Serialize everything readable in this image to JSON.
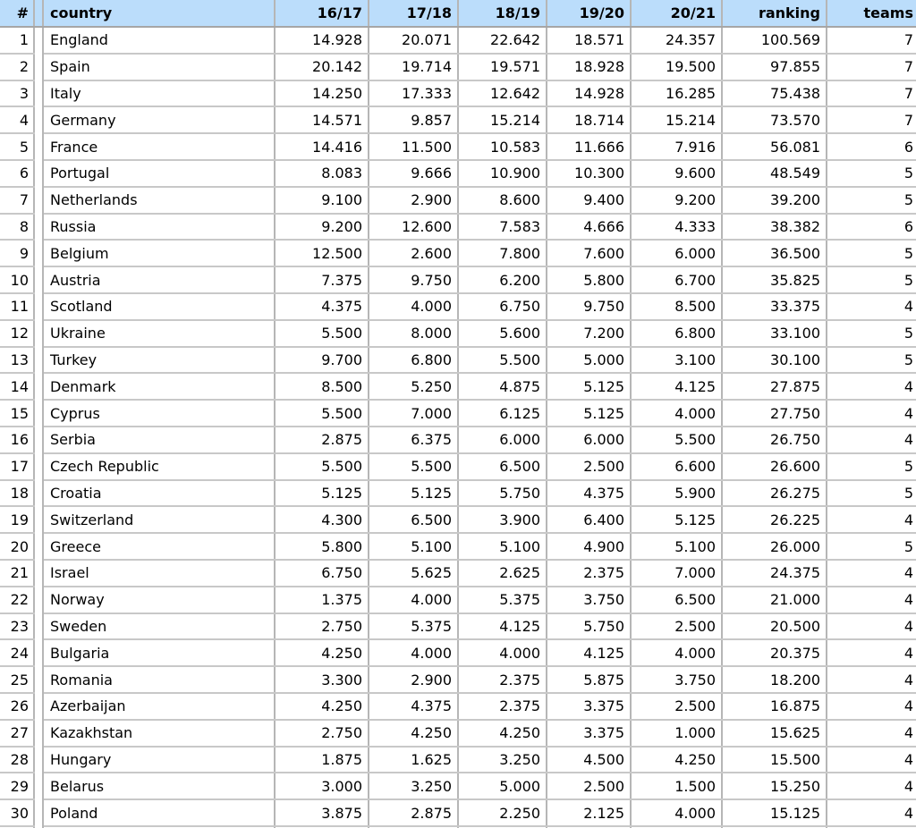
{
  "chart_data": {
    "type": "table",
    "columns": [
      "#",
      "country",
      "16/17",
      "17/18",
      "18/19",
      "19/20",
      "20/21",
      "ranking",
      "teams"
    ],
    "rows": [
      [
        "1",
        "England",
        "14.928",
        "20.071",
        "22.642",
        "18.571",
        "24.357",
        "100.569",
        "7"
      ],
      [
        "2",
        "Spain",
        "20.142",
        "19.714",
        "19.571",
        "18.928",
        "19.500",
        "97.855",
        "7"
      ],
      [
        "3",
        "Italy",
        "14.250",
        "17.333",
        "12.642",
        "14.928",
        "16.285",
        "75.438",
        "7"
      ],
      [
        "4",
        "Germany",
        "14.571",
        "9.857",
        "15.214",
        "18.714",
        "15.214",
        "73.570",
        "7"
      ],
      [
        "5",
        "France",
        "14.416",
        "11.500",
        "10.583",
        "11.666",
        "7.916",
        "56.081",
        "6"
      ],
      [
        "6",
        "Portugal",
        "8.083",
        "9.666",
        "10.900",
        "10.300",
        "9.600",
        "48.549",
        "5"
      ],
      [
        "7",
        "Netherlands",
        "9.100",
        "2.900",
        "8.600",
        "9.400",
        "9.200",
        "39.200",
        "5"
      ],
      [
        "8",
        "Russia",
        "9.200",
        "12.600",
        "7.583",
        "4.666",
        "4.333",
        "38.382",
        "6"
      ],
      [
        "9",
        "Belgium",
        "12.500",
        "2.600",
        "7.800",
        "7.600",
        "6.000",
        "36.500",
        "5"
      ],
      [
        "10",
        "Austria",
        "7.375",
        "9.750",
        "6.200",
        "5.800",
        "6.700",
        "35.825",
        "5"
      ],
      [
        "11",
        "Scotland",
        "4.375",
        "4.000",
        "6.750",
        "9.750",
        "8.500",
        "33.375",
        "4"
      ],
      [
        "12",
        "Ukraine",
        "5.500",
        "8.000",
        "5.600",
        "7.200",
        "6.800",
        "33.100",
        "5"
      ],
      [
        "13",
        "Turkey",
        "9.700",
        "6.800",
        "5.500",
        "5.000",
        "3.100",
        "30.100",
        "5"
      ],
      [
        "14",
        "Denmark",
        "8.500",
        "5.250",
        "4.875",
        "5.125",
        "4.125",
        "27.875",
        "4"
      ],
      [
        "15",
        "Cyprus",
        "5.500",
        "7.000",
        "6.125",
        "5.125",
        "4.000",
        "27.750",
        "4"
      ],
      [
        "16",
        "Serbia",
        "2.875",
        "6.375",
        "6.000",
        "6.000",
        "5.500",
        "26.750",
        "4"
      ],
      [
        "17",
        "Czech Republic",
        "5.500",
        "5.500",
        "6.500",
        "2.500",
        "6.600",
        "26.600",
        "5"
      ],
      [
        "18",
        "Croatia",
        "5.125",
        "5.125",
        "5.750",
        "4.375",
        "5.900",
        "26.275",
        "5"
      ],
      [
        "19",
        "Switzerland",
        "4.300",
        "6.500",
        "3.900",
        "6.400",
        "5.125",
        "26.225",
        "4"
      ],
      [
        "20",
        "Greece",
        "5.800",
        "5.100",
        "5.100",
        "4.900",
        "5.100",
        "26.000",
        "5"
      ],
      [
        "21",
        "Israel",
        "6.750",
        "5.625",
        "2.625",
        "2.375",
        "7.000",
        "24.375",
        "4"
      ],
      [
        "22",
        "Norway",
        "1.375",
        "4.000",
        "5.375",
        "3.750",
        "6.500",
        "21.000",
        "4"
      ],
      [
        "23",
        "Sweden",
        "2.750",
        "5.375",
        "4.125",
        "5.750",
        "2.500",
        "20.500",
        "4"
      ],
      [
        "24",
        "Bulgaria",
        "4.250",
        "4.000",
        "4.000",
        "4.125",
        "4.000",
        "20.375",
        "4"
      ],
      [
        "25",
        "Romania",
        "3.300",
        "2.900",
        "2.375",
        "5.875",
        "3.750",
        "18.200",
        "4"
      ],
      [
        "26",
        "Azerbaijan",
        "4.250",
        "4.375",
        "2.375",
        "3.375",
        "2.500",
        "16.875",
        "4"
      ],
      [
        "27",
        "Kazakhstan",
        "2.750",
        "4.250",
        "4.250",
        "3.375",
        "1.000",
        "15.625",
        "4"
      ],
      [
        "28",
        "Hungary",
        "1.875",
        "1.625",
        "3.250",
        "4.500",
        "4.250",
        "15.500",
        "4"
      ],
      [
        "29",
        "Belarus",
        "3.000",
        "3.250",
        "5.000",
        "2.500",
        "1.500",
        "15.250",
        "4"
      ],
      [
        "30",
        "Poland",
        "3.875",
        "2.875",
        "2.250",
        "2.125",
        "4.000",
        "15.125",
        "4"
      ]
    ]
  },
  "colors": {
    "header_bg": "#BBDDFB",
    "grid_line": "#B6B6B6",
    "row_line": "#C8C8C8",
    "header_line": "#A6A6A6",
    "text": "#000000"
  }
}
